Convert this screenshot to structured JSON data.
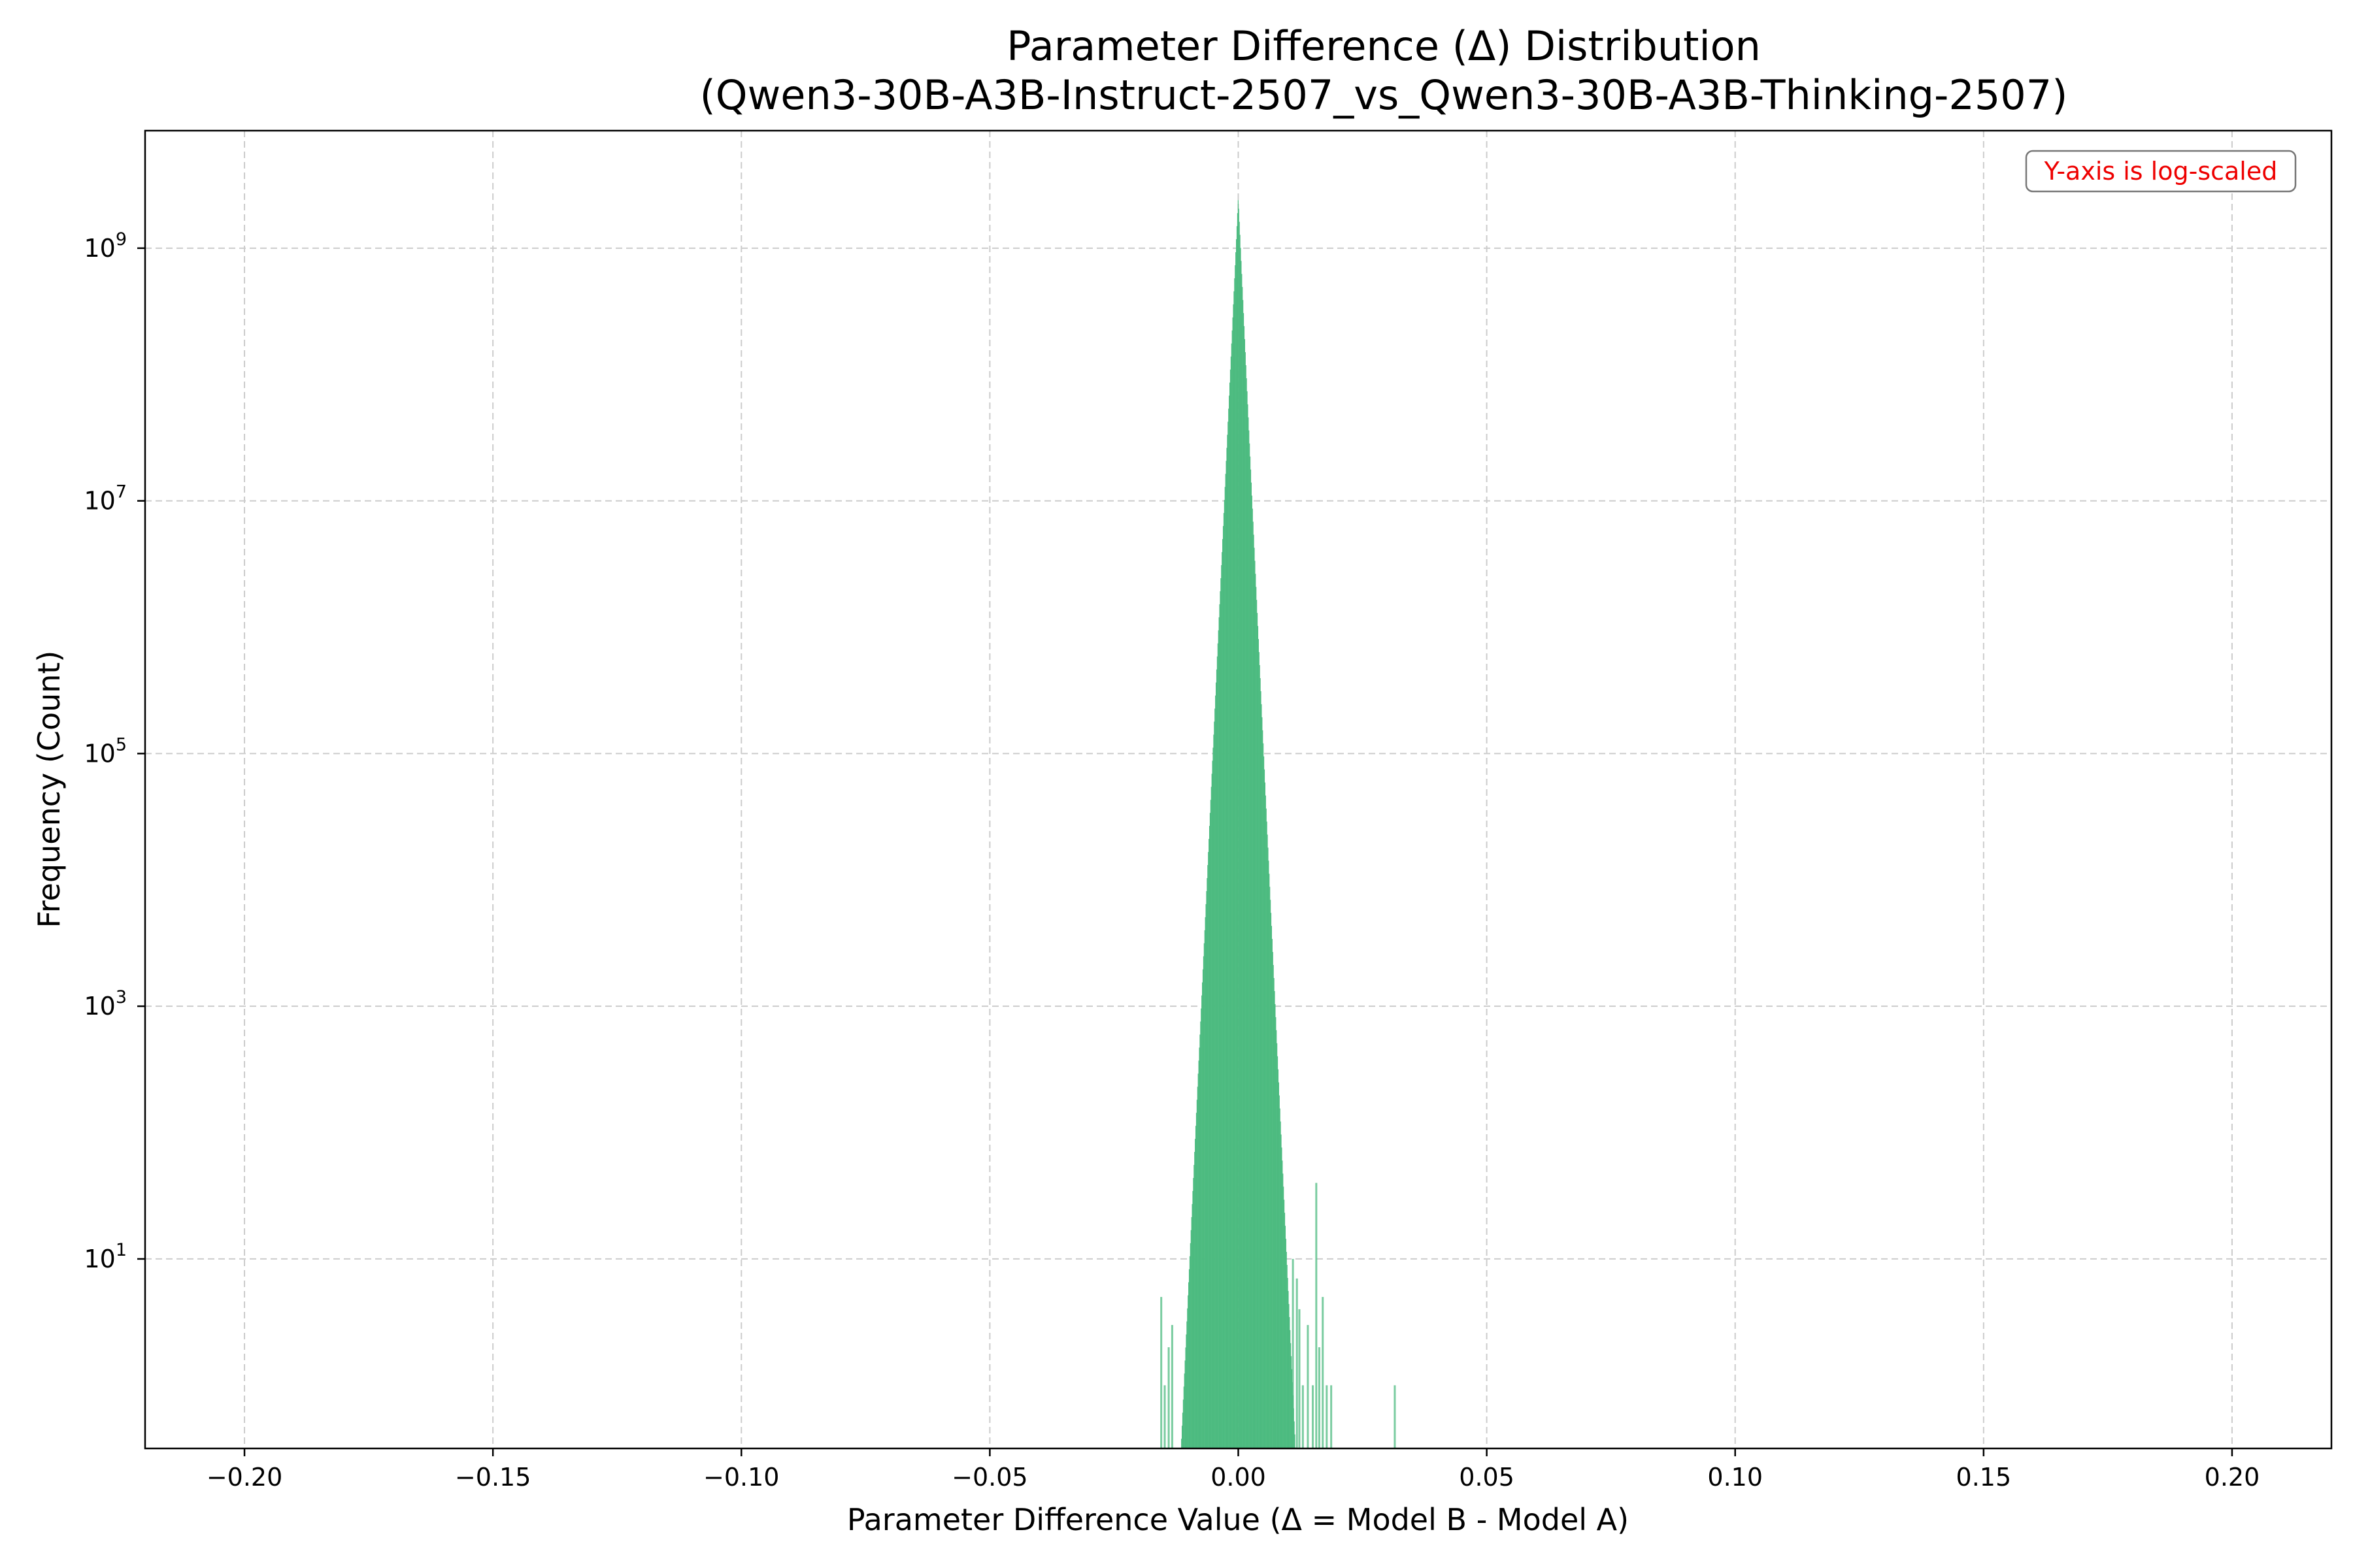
{
  "chart_data": {
    "type": "bar",
    "title": "Parameter Difference (Δ) Distribution",
    "subtitle": "(Qwen3-30B-A3B-Instruct-2507_vs_Qwen3-30B-A3B-Thinking-2507)",
    "xlabel": "Parameter Difference Value (Δ = Model B - Model A)",
    "ylabel": "Frequency (Count)",
    "xlim": [
      -0.22,
      0.22
    ],
    "ylim_log10": [
      -0.5,
      9.93
    ],
    "y_scale": "log",
    "grid": true,
    "annotation": "Y-axis is log-scaled",
    "annotation_color": "#ee0000",
    "bar_color": "#4dbb80",
    "x_ticks": [
      -0.2,
      -0.15,
      -0.1,
      -0.05,
      0.0,
      0.05,
      0.1,
      0.15,
      0.2
    ],
    "x_tick_labels": [
      "−0.20",
      "−0.15",
      "−0.10",
      "−0.05",
      "0.00",
      "0.05",
      "0.10",
      "0.15",
      "0.20"
    ],
    "y_ticks": [
      1,
      3,
      5,
      7,
      9
    ],
    "y_tick_labels": [
      "10",
      "10",
      "10",
      "10",
      "10"
    ],
    "y_tick_exponents": [
      "1",
      "3",
      "5",
      "7",
      "9"
    ],
    "distribution": {
      "center": 0.0,
      "peak_count": 2500000000,
      "decay_log10_per_unit": 860,
      "core_half_width": 0.0125,
      "bin_width": 0.00012
    },
    "outlier_bins": [
      {
        "x": -0.0155,
        "count": 5
      },
      {
        "x": -0.0148,
        "count": 1
      },
      {
        "x": -0.014,
        "count": 2
      },
      {
        "x": -0.0133,
        "count": 3
      },
      {
        "x": 0.011,
        "count": 10
      },
      {
        "x": 0.0118,
        "count": 7
      },
      {
        "x": 0.0123,
        "count": 4
      },
      {
        "x": 0.013,
        "count": 1
      },
      {
        "x": 0.014,
        "count": 3
      },
      {
        "x": 0.015,
        "count": 1
      },
      {
        "x": 0.0157,
        "count": 40
      },
      {
        "x": 0.0163,
        "count": 2
      },
      {
        "x": 0.017,
        "count": 5
      },
      {
        "x": 0.0178,
        "count": 1
      },
      {
        "x": 0.0187,
        "count": 1
      },
      {
        "x": 0.0315,
        "count": 1
      }
    ]
  }
}
